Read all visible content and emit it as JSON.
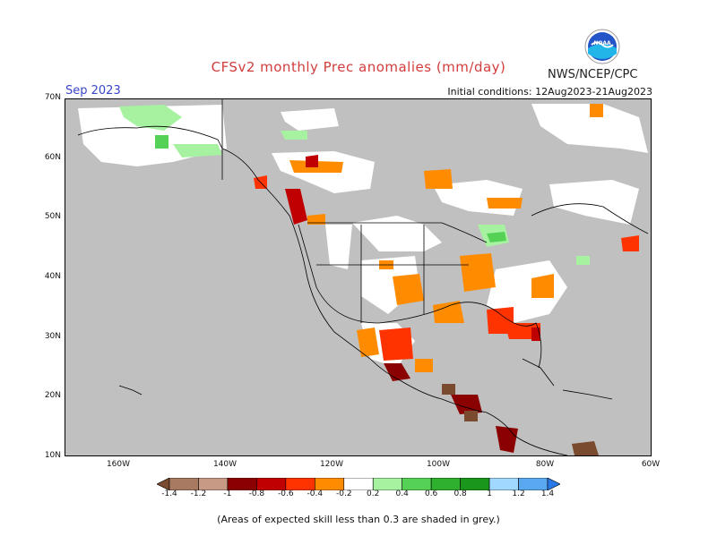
{
  "header": {
    "title": "CFSv2 monthly Prec anomalies (mm/day)",
    "org": "NWS/NCEP/CPC",
    "month": "Sep 2023",
    "initial_conditions": "Initial conditions: 12Aug2023-21Aug2023",
    "logo_label": "NOAA"
  },
  "axes": {
    "lat_labels": [
      "70N",
      "60N",
      "50N",
      "40N",
      "30N",
      "20N",
      "10N"
    ],
    "lon_labels": [
      "160W",
      "140W",
      "120W",
      "100W",
      "80W",
      "60W"
    ]
  },
  "legend": {
    "labels": [
      "-1.4",
      "-1.2",
      "-1",
      "-0.8",
      "-0.6",
      "-0.4",
      "-0.2",
      "0.2",
      "0.4",
      "0.6",
      "0.8",
      "1",
      "1.2",
      "1.4"
    ],
    "colors": [
      "#7a4b2e",
      "#a97a62",
      "#c79a86",
      "#8b0000",
      "#c00000",
      "#ff3300",
      "#ff8c00",
      "#ffffff",
      "#a6f2a0",
      "#55d155",
      "#2fb12f",
      "#1a961a",
      "#a0d8ff",
      "#5aa8f0",
      "#2878e6"
    ]
  },
  "footnote": "(Areas of expected skill less than 0.3 are shaded in grey.)",
  "colors": {
    "title": "#d23c3c",
    "month": "#3a46c8",
    "skill_grey": "#c0c0c0",
    "ocean_white": "#ffffff"
  }
}
